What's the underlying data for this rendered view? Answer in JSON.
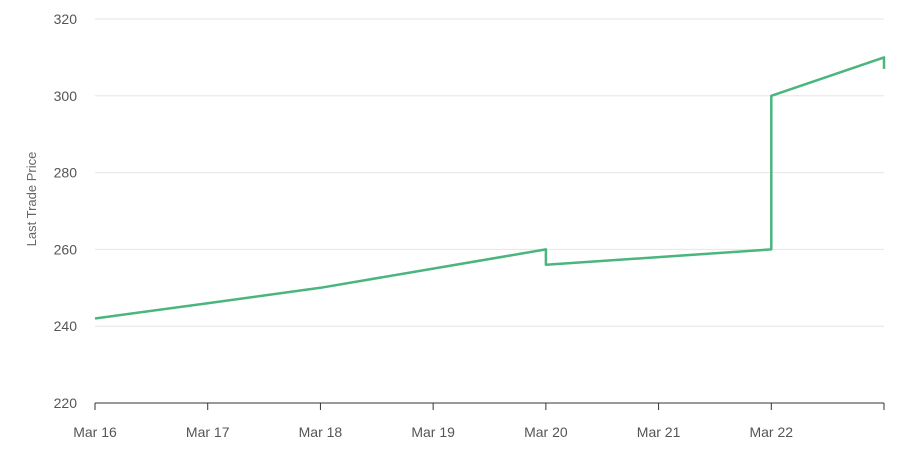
{
  "chart_data": {
    "type": "line",
    "ylabel": "Last Trade Price",
    "ylim": [
      220,
      320
    ],
    "yticks": [
      220,
      240,
      260,
      280,
      300,
      320
    ],
    "xlim": [
      "Mar 16",
      "Mar 23"
    ],
    "xticks": [
      "Mar 16",
      "Mar 17",
      "Mar 18",
      "Mar 19",
      "Mar 20",
      "Mar 21",
      "Mar 22"
    ],
    "grid": true,
    "series": [
      {
        "color": "#4bb57e",
        "points": [
          {
            "x": "Mar 16 00:00",
            "y": 242
          },
          {
            "x": "Mar 17 00:00",
            "y": 246
          },
          {
            "x": "Mar 18 00:00",
            "y": 250
          },
          {
            "x": "Mar 19 00:00",
            "y": 255
          },
          {
            "x": "Mar 20 00:00",
            "y": 260
          },
          {
            "x": "Mar 20 00:00",
            "y": 256
          },
          {
            "x": "Mar 21 00:00",
            "y": 258
          },
          {
            "x": "Mar 22 00:00",
            "y": 260
          },
          {
            "x": "Mar 22 00:00",
            "y": 300
          },
          {
            "x": "Mar 23 00:00",
            "y": 310
          },
          {
            "x": "Mar 23 00:00",
            "y": 307
          }
        ]
      }
    ]
  }
}
